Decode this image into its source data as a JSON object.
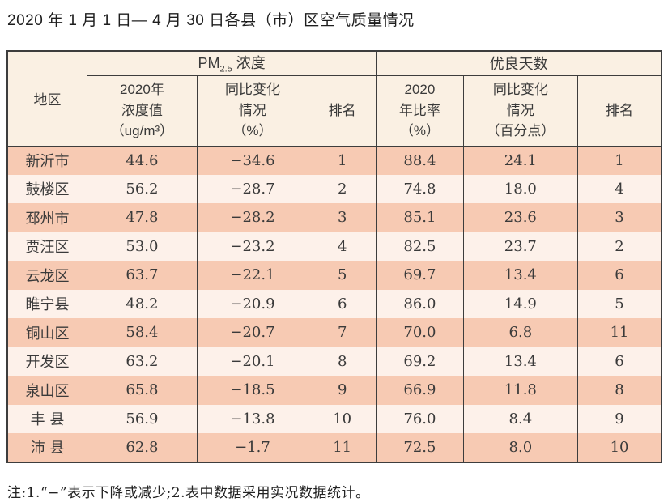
{
  "title": "2020 年 1 月 1 日— 4 月 30 日各县（市）区空气质量情况",
  "table": {
    "region_header": "地区",
    "groups": {
      "pm": {
        "prefix": "PM",
        "sub": "2.5",
        "suffix": " 浓度"
      },
      "good": {
        "label": "优良天数"
      }
    },
    "columns": {
      "pm_value": "2020年\n浓度值\n（ug/m³）",
      "pm_change": "同比变化\n情况\n（%）",
      "pm_rank": "排名",
      "good_ratio": "2020\n年比率\n（%）",
      "good_change": "同比变化\n情况\n（百分点）",
      "good_rank": "排名"
    },
    "rows": [
      {
        "region": "新沂市",
        "pm_value": "44.6",
        "pm_change": "−34.6",
        "pm_rank": "1",
        "good_ratio": "88.4",
        "good_change": "24.1",
        "good_rank": "1"
      },
      {
        "region": "鼓楼区",
        "pm_value": "56.2",
        "pm_change": "−28.7",
        "pm_rank": "2",
        "good_ratio": "74.8",
        "good_change": "18.0",
        "good_rank": "4"
      },
      {
        "region": "邳州市",
        "pm_value": "47.8",
        "pm_change": "−28.2",
        "pm_rank": "3",
        "good_ratio": "85.1",
        "good_change": "23.6",
        "good_rank": "3"
      },
      {
        "region": "贾汪区",
        "pm_value": "53.0",
        "pm_change": "−23.2",
        "pm_rank": "4",
        "good_ratio": "82.5",
        "good_change": "23.7",
        "good_rank": "2"
      },
      {
        "region": "云龙区",
        "pm_value": "63.7",
        "pm_change": "−22.1",
        "pm_rank": "5",
        "good_ratio": "69.7",
        "good_change": "13.4",
        "good_rank": "6"
      },
      {
        "region": "睢宁县",
        "pm_value": "48.2",
        "pm_change": "−20.9",
        "pm_rank": "6",
        "good_ratio": "86.0",
        "good_change": "14.9",
        "good_rank": "5"
      },
      {
        "region": "铜山区",
        "pm_value": "58.4",
        "pm_change": "−20.7",
        "pm_rank": "7",
        "good_ratio": "70.0",
        "good_change": "6.8",
        "good_rank": "11"
      },
      {
        "region": "开发区",
        "pm_value": "63.2",
        "pm_change": "−20.1",
        "pm_rank": "8",
        "good_ratio": "69.2",
        "good_change": "13.4",
        "good_rank": "6"
      },
      {
        "region": "泉山区",
        "pm_value": "65.8",
        "pm_change": "−18.5",
        "pm_rank": "9",
        "good_ratio": "66.9",
        "good_change": "11.8",
        "good_rank": "8"
      },
      {
        "region": "丰 县",
        "pm_value": "56.9",
        "pm_change": "−13.8",
        "pm_rank": "10",
        "good_ratio": "76.0",
        "good_change": "8.4",
        "good_rank": "9"
      },
      {
        "region": "沛 县",
        "pm_value": "62.8",
        "pm_change": "−1.7",
        "pm_rank": "11",
        "good_ratio": "72.5",
        "good_change": "8.0",
        "good_rank": "10"
      }
    ]
  },
  "note": "注:1.“−”表示下降或减少;2.表中数据采用实况数据统计。",
  "colors": {
    "row_odd": "#f7cab3",
    "row_even": "#fdf1ea",
    "header_bg": "#faf0e3",
    "border": "#3d3d3d"
  }
}
